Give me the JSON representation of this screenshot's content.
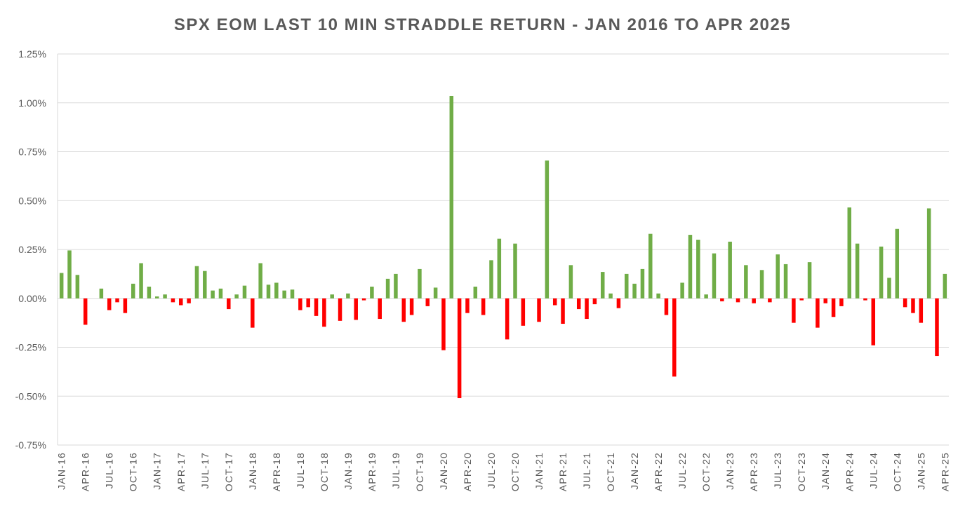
{
  "chart_data": {
    "type": "bar",
    "title": "SPX EOM LAST 10 MIN STRADDLE RETURN - JAN 2016 TO APR 2025",
    "xlabel": "",
    "ylabel": "",
    "ylim": [
      -0.75,
      1.25
    ],
    "y_ticks": [
      -0.75,
      -0.5,
      -0.25,
      0,
      0.25,
      0.5,
      0.75,
      1.0,
      1.25
    ],
    "y_tick_labels": [
      "-0.75%",
      "-0.50%",
      "-0.25%",
      "0.00%",
      "0.25%",
      "0.50%",
      "0.75%",
      "1.00%",
      "1.25%"
    ],
    "unit": "%",
    "grid": true,
    "legend": "none",
    "colors": {
      "positive": "#70AD47",
      "negative": "#FF0000",
      "grid": "#D9D9D9",
      "text": "#595959"
    },
    "x_tick_labels": [
      "JAN-16",
      "APR-16",
      "JUL-16",
      "OCT-16",
      "JAN-17",
      "APR-17",
      "JUL-17",
      "OCT-17",
      "JAN-18",
      "APR-18",
      "JUL-18",
      "OCT-18",
      "JAN-19",
      "APR-19",
      "JUL-19",
      "OCT-19",
      "JAN-20",
      "APR-20",
      "JUL-20",
      "OCT-20",
      "JAN-21",
      "APR-21",
      "JUL-21",
      "OCT-21",
      "JAN-22",
      "APR-22",
      "JUL-22",
      "OCT-22",
      "JAN-23",
      "APR-23",
      "JUL-23",
      "OCT-23",
      "JAN-24",
      "APR-24",
      "JUL-24",
      "OCT-24",
      "JAN-25",
      "APR-25"
    ],
    "categories": [
      "JAN-16",
      "FEB-16",
      "MAR-16",
      "APR-16",
      "MAY-16",
      "JUN-16",
      "JUL-16",
      "AUG-16",
      "SEP-16",
      "OCT-16",
      "NOV-16",
      "DEC-16",
      "JAN-17",
      "FEB-17",
      "MAR-17",
      "APR-17",
      "MAY-17",
      "JUN-17",
      "JUL-17",
      "AUG-17",
      "SEP-17",
      "OCT-17",
      "NOV-17",
      "DEC-17",
      "JAN-18",
      "FEB-18",
      "MAR-18",
      "APR-18",
      "MAY-18",
      "JUN-18",
      "JUL-18",
      "AUG-18",
      "SEP-18",
      "OCT-18",
      "NOV-18",
      "DEC-18",
      "JAN-19",
      "FEB-19",
      "MAR-19",
      "APR-19",
      "MAY-19",
      "JUN-19",
      "JUL-19",
      "AUG-19",
      "SEP-19",
      "OCT-19",
      "NOV-19",
      "DEC-19",
      "JAN-20",
      "FEB-20",
      "MAR-20",
      "APR-20",
      "MAY-20",
      "JUN-20",
      "JUL-20",
      "AUG-20",
      "SEP-20",
      "OCT-20",
      "NOV-20",
      "DEC-20",
      "JAN-21",
      "FEB-21",
      "MAR-21",
      "APR-21",
      "MAY-21",
      "JUN-21",
      "JUL-21",
      "AUG-21",
      "SEP-21",
      "OCT-21",
      "NOV-21",
      "DEC-21",
      "JAN-22",
      "FEB-22",
      "MAR-22",
      "APR-22",
      "MAY-22",
      "JUN-22",
      "JUL-22",
      "AUG-22",
      "SEP-22",
      "OCT-22",
      "NOV-22",
      "DEC-22",
      "JAN-23",
      "FEB-23",
      "MAR-23",
      "APR-23",
      "MAY-23",
      "JUN-23",
      "JUL-23",
      "AUG-23",
      "SEP-23",
      "OCT-23",
      "NOV-23",
      "DEC-23",
      "JAN-24",
      "FEB-24",
      "MAR-24",
      "APR-24",
      "MAY-24",
      "JUN-24",
      "JUL-24",
      "AUG-24",
      "SEP-24",
      "OCT-24",
      "NOV-24",
      "DEC-24",
      "JAN-25",
      "FEB-25",
      "MAR-25",
      "APR-25"
    ],
    "values": [
      0.13,
      0.245,
      0.12,
      -0.135,
      0,
      0.05,
      -0.06,
      -0.02,
      -0.075,
      0.075,
      0.18,
      0.06,
      0.01,
      0.02,
      -0.02,
      -0.035,
      -0.025,
      0.165,
      0.14,
      0.04,
      0.05,
      -0.055,
      0.02,
      0.065,
      -0.15,
      0.18,
      0.07,
      0.08,
      0.04,
      0.045,
      -0.06,
      -0.045,
      -0.09,
      -0.145,
      0.02,
      -0.115,
      0.025,
      -0.11,
      -0.01,
      0.06,
      -0.105,
      0.1,
      0.125,
      -0.12,
      -0.085,
      0.15,
      -0.04,
      0.055,
      -0.265,
      1.035,
      -0.51,
      -0.075,
      0.06,
      -0.085,
      0.195,
      0.305,
      -0.21,
      0.28,
      -0.14,
      0,
      -0.12,
      0.705,
      -0.035,
      -0.13,
      0.17,
      -0.055,
      -0.105,
      -0.03,
      0.135,
      0.025,
      -0.05,
      0.125,
      0.075,
      0.15,
      0.33,
      0.025,
      -0.085,
      -0.4,
      0.08,
      0.325,
      0.3,
      0.02,
      0.23,
      -0.015,
      0.29,
      -0.02,
      0.17,
      -0.025,
      0.145,
      -0.02,
      0.225,
      0.175,
      -0.125,
      -0.01,
      0.185,
      -0.15,
      -0.025,
      -0.095,
      -0.04,
      0.465,
      0.28,
      -0.01,
      -0.24,
      0.265,
      0.105,
      0.355,
      -0.045,
      -0.075,
      -0.125,
      0.46,
      -0.295,
      0.125
    ]
  }
}
